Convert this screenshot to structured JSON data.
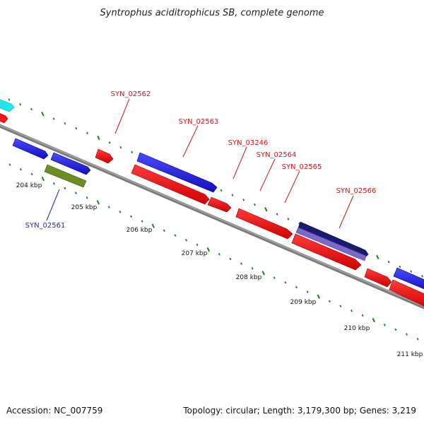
{
  "title": "Syntrophus aciditrophicus SB, complete genome",
  "footer": {
    "accession": "Accession: NC_007759",
    "summary": "Topology: circular; Length: 3,179,300 bp; Genes: 3,219"
  },
  "colors": {
    "backbone": "#808080",
    "tick": "#1a7f1a",
    "forward_gene": "#1f1fe6",
    "reverse_gene": "#ff1414",
    "label_forward": "#1f1fd0",
    "label_reverse": "#d01414",
    "cyan_gene": "#22e5ee",
    "olive_gene": "#6b8e23",
    "navy_gene": "#1a1a6e",
    "purple_gene": "#7b68c8"
  },
  "scale_labels": [
    "204 kbp",
    "205 kbp",
    "206 kbp",
    "207 kbp",
    "208 kbp",
    "209 kbp",
    "210 kbp",
    "211 kbp"
  ],
  "gene_labels": [
    "SYN_02562",
    "SYN_02563",
    "SYN_03246",
    "SYN_02564",
    "SYN_02565",
    "SYN_02566",
    "SYN_02561"
  ]
}
